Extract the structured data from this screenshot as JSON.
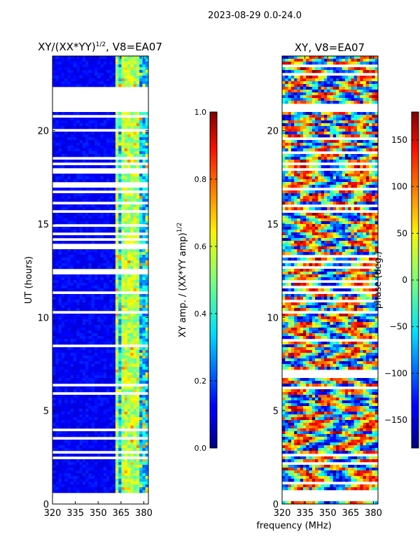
{
  "figure": {
    "suptitle": "2023-08-29 0.0-24.0",
    "xlabel": "frequency (MHz)"
  },
  "chart_data": [
    {
      "type": "heatmap",
      "title_base": "XY/(XX*YY)",
      "title_sup": "1/2",
      "title_tail": ", V8=EA07",
      "ylabel": "UT (hours)",
      "xlim": [
        320,
        383
      ],
      "ylim": [
        0,
        24
      ],
      "x_ticks": [
        320,
        335,
        350,
        365,
        380
      ],
      "y_ticks": [
        0,
        5,
        10,
        15,
        20
      ],
      "colorbar": {
        "label": "XY amp. / (XX*YY amp)",
        "label_sup": "1/2",
        "vmin": 0.0,
        "vmax": 1.0,
        "ticks": [
          0.0,
          0.2,
          0.4,
          0.6,
          0.8,
          1.0
        ],
        "tick_labels": [
          "0.0",
          "0.2",
          "0.4",
          "0.6",
          "0.8",
          "1.0"
        ]
      },
      "flagged_ut_ranges": [
        [
          0.0,
          0.12
        ],
        [
          0.12,
          0.66
        ],
        [
          21.0,
          21.5
        ],
        [
          21.5,
          22.3
        ]
      ],
      "bright_frequency_bands": [
        362,
        366,
        369,
        372,
        375
      ]
    },
    {
      "type": "heatmap",
      "title": "XY, V8=EA07",
      "ylabel": "",
      "xlim": [
        320,
        383
      ],
      "ylim": [
        0,
        24
      ],
      "x_ticks": [
        320,
        335,
        350,
        365,
        380
      ],
      "y_ticks": [
        0,
        5,
        10,
        15,
        20
      ],
      "colorbar": {
        "label": "phase (deg.)",
        "vmin": -180,
        "vmax": 180,
        "ticks": [
          -150,
          -100,
          -50,
          0,
          50,
          100,
          150
        ],
        "tick_labels": [
          "−150",
          "−100",
          "−50",
          "0",
          "50",
          "100",
          "150"
        ]
      },
      "flagged_ut_ranges": [
        [
          0.12,
          0.66
        ],
        [
          21.0,
          21.5
        ]
      ]
    }
  ]
}
